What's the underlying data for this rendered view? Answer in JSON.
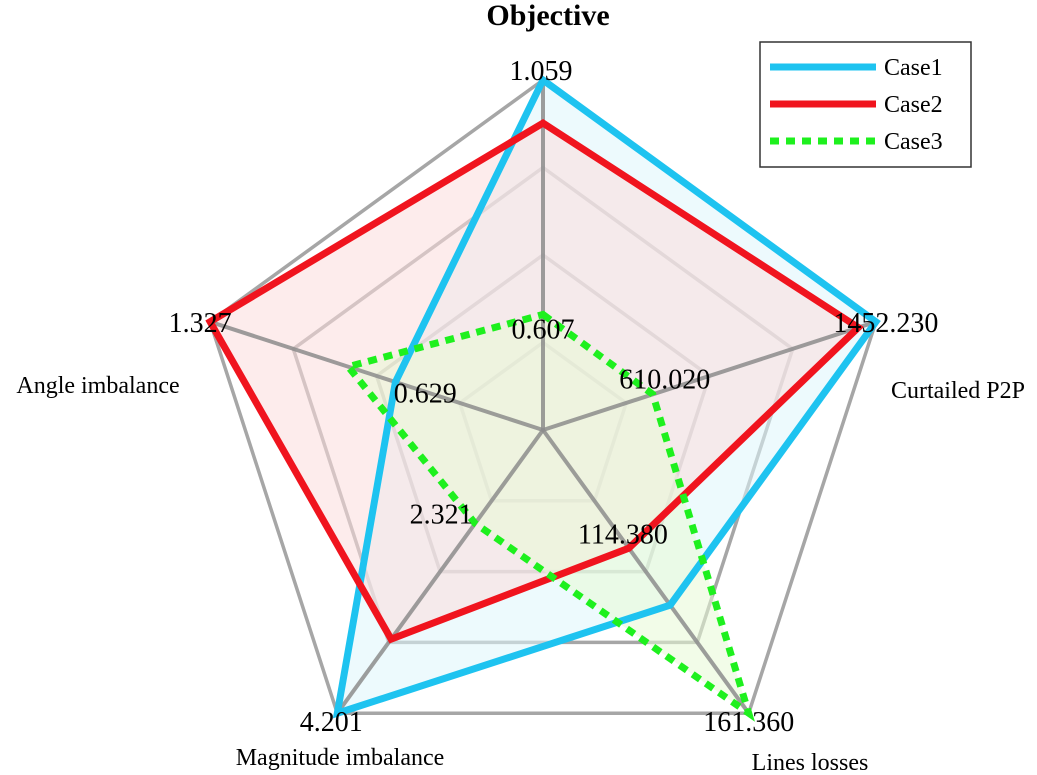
{
  "chart_data": {
    "type": "radar",
    "title": "Objective",
    "axes": [
      "Objective",
      "Curtailed P2P",
      "Lines losses",
      "Magnitude imbalance",
      "Angle imbalance"
    ],
    "axis_labels_shown": [
      "",
      "Curtailed P2P",
      "Lines losses",
      "Magnitude imbalance",
      "Angle imbalance"
    ],
    "axis_min": [
      0.607,
      610.02,
      114.38,
      2.321,
      0.629
    ],
    "axis_max": [
      1.059,
      1452.23,
      161.36,
      4.201,
      1.327
    ],
    "min_labels": [
      "0.607",
      "610.020",
      "114.380",
      "2.321",
      "0.629"
    ],
    "max_labels": [
      "1.059",
      "1452.230",
      "161.360",
      "4.201",
      "1.327"
    ],
    "rings": 4,
    "legend_position": "top-right",
    "series": [
      {
        "name": "Case1",
        "color": "#1ec3f0",
        "fill": "#dff6fc",
        "dash": "solid",
        "values": [
          1.059,
          1452.23,
          134.6,
          4.201,
          0.747
        ]
      },
      {
        "name": "Case2",
        "color": "#f0141e",
        "fill": "#fbdcdc",
        "dash": "solid",
        "values": [
          0.976,
          1386.0,
          120.5,
          3.467,
          1.327
        ]
      },
      {
        "name": "Case3",
        "color": "#1ef01e",
        "fill": "#e8fad6",
        "dash": "dotted",
        "values": [
          0.607,
          610.02,
          161.36,
          2.321,
          0.895
        ]
      }
    ]
  }
}
